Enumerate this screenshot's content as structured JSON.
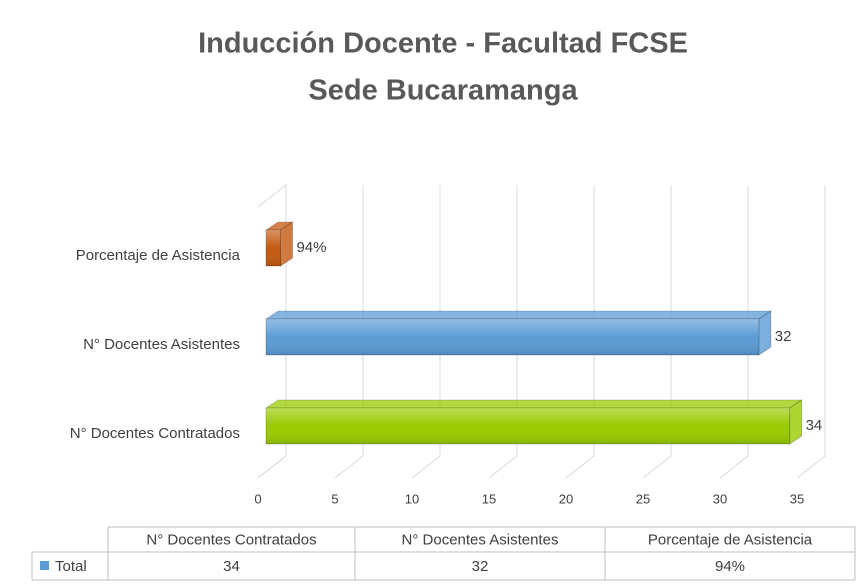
{
  "chart_data": {
    "type": "bar3d",
    "title": [
      "Inducción Docente - Facultad FCSE",
      "Sede Bucaramanga"
    ],
    "categories": [
      "N° Docentes Contratados",
      "N° Docentes Asistentes",
      "Porcentaje de Asistencia"
    ],
    "series": [
      {
        "name": "Total",
        "color": "#5b9bd5",
        "values": [
          34,
          32,
          0.94
        ],
        "value_labels": [
          "34",
          "32",
          "94%"
        ],
        "colors": [
          "#99cc00",
          "#5b9bd5",
          "#c55a11"
        ]
      }
    ],
    "xlim": [
      0,
      35
    ],
    "xticks": [
      0,
      5,
      10,
      15,
      20,
      25,
      30,
      35
    ],
    "grid": true,
    "data_table": true
  }
}
